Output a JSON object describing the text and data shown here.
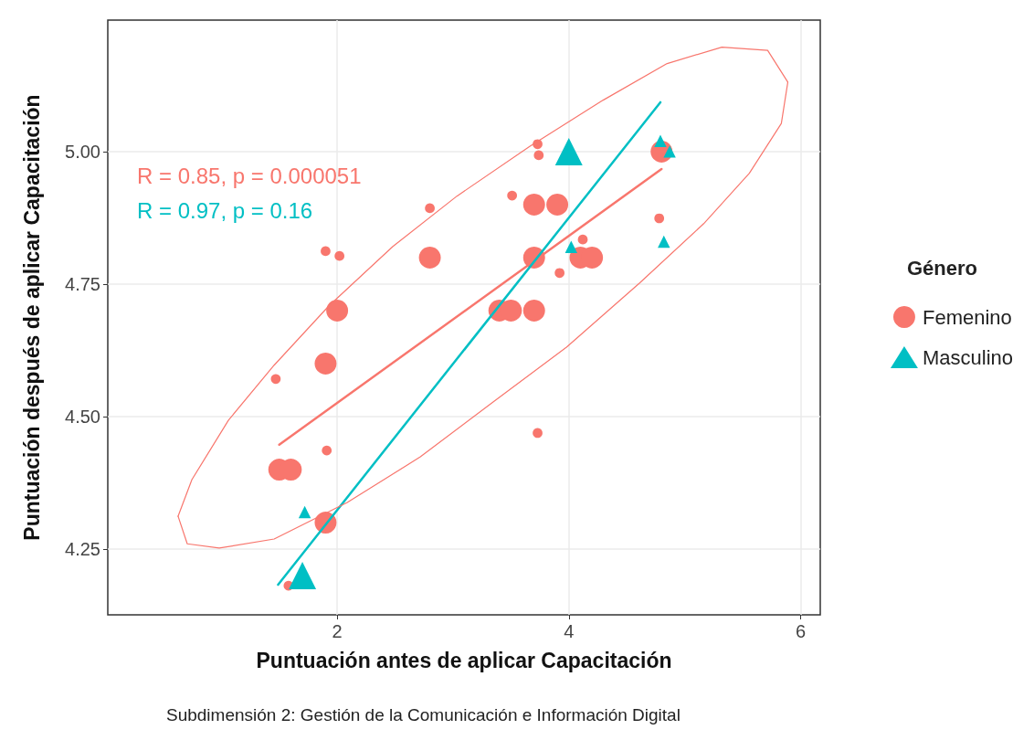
{
  "chart_data": {
    "type": "bubble",
    "xlabel": "Puntuación antes de aplicar Capacitación",
    "ylabel": "Puntuación después de aplicar Capacitación",
    "subtitle": "Subdimensión 2: Gestión de la Comunicación e Información Digital",
    "legend_title": "Género",
    "legend": "right",
    "grid": true,
    "xlim": [
      0.02,
      6.17
    ],
    "xticks": [
      2,
      4,
      6
    ],
    "ylim": [
      4.126,
      5.248
    ],
    "yticks": [
      {
        "value": 4.25,
        "label": "4.25"
      },
      {
        "value": 4.5,
        "label": "4.50"
      },
      {
        "value": 4.75,
        "label": "4.75"
      },
      {
        "value": 5,
        "label": "5.00"
      }
    ],
    "annotations": [
      "R = 0.85, p = 0.000051",
      "R = 0.97, p = 0.16"
    ],
    "series": [
      {
        "name": "Femenino",
        "marker": "circle",
        "color": "#f8766d",
        "x": [
          4.8,
          3.7,
          3.9,
          2.8,
          3.7,
          4.1,
          4.2,
          2.0,
          3.4,
          3.5,
          3.7,
          1.9,
          1.5,
          1.6,
          1.9,
          3.73,
          3.74,
          2.8,
          3.51,
          1.9,
          2.02,
          4.12,
          3.92,
          4.78,
          1.47,
          1.91,
          3.73,
          1.58
        ],
        "values": [
          5.0,
          4.9,
          4.9,
          4.8,
          4.8,
          4.8,
          4.8,
          4.7,
          4.7,
          4.7,
          4.7,
          4.6,
          4.4,
          4.4,
          4.3,
          5.014,
          4.993,
          4.893,
          4.917,
          4.812,
          4.803,
          4.834,
          4.771,
          4.874,
          4.571,
          4.436,
          4.469,
          4.181
        ],
        "sizes": [
          1,
          1,
          1,
          1,
          1,
          1,
          1,
          1,
          1,
          1,
          1,
          1,
          1,
          1,
          1,
          0.2,
          0.2,
          0.2,
          0.2,
          0.2,
          0.2,
          0.2,
          0.2,
          0.2,
          0.2,
          0.2,
          0.2,
          0.2
        ]
      },
      {
        "name": "Masculino",
        "marker": "triangle",
        "color": "#00bfc4",
        "x": [
          4.0,
          1.7,
          4.79,
          4.87,
          4.82,
          4.02,
          1.72
        ],
        "values": [
          5.0,
          4.2,
          5.02,
          5.0,
          4.83,
          4.82,
          4.32
        ],
        "sizes": [
          1,
          1,
          0.2,
          0.2,
          0.2,
          0.2,
          0.2
        ]
      },
      {
        "type": "line",
        "color": "#f8766d",
        "line_style": "solid",
        "x": [
          1.5,
          4.8
        ],
        "values": [
          4.447,
          4.967
        ]
      },
      {
        "type": "line",
        "color": "#00bfc4",
        "line_style": "solid",
        "x": [
          1.49,
          4.79
        ],
        "values": [
          4.183,
          5.093
        ]
      },
      {
        "type": "line",
        "color": "#f8766d",
        "line_style": "solid",
        "x": [
          0.627,
          0.746,
          1.061,
          1.456,
          1.929,
          2.481,
          3.034,
          3.665,
          4.296,
          4.848,
          5.321,
          5.716,
          5.89
        ],
        "values": [
          4.312,
          4.381,
          4.493,
          4.597,
          4.709,
          4.821,
          4.916,
          5.01,
          5.097,
          5.166,
          5.197,
          5.191,
          5.131
        ]
      },
      {
        "type": "line",
        "color": "#f8766d",
        "line_style": "solid",
        "x": [
          0.627,
          0.706,
          0.982,
          1.456,
          2.087,
          2.718,
          3.349,
          3.98,
          4.611,
          5.164,
          5.558,
          5.834,
          5.89
        ],
        "values": [
          4.312,
          4.26,
          4.252,
          4.269,
          4.338,
          4.424,
          4.528,
          4.631,
          4.752,
          4.864,
          4.959,
          5.053,
          5.131
        ]
      }
    ]
  }
}
